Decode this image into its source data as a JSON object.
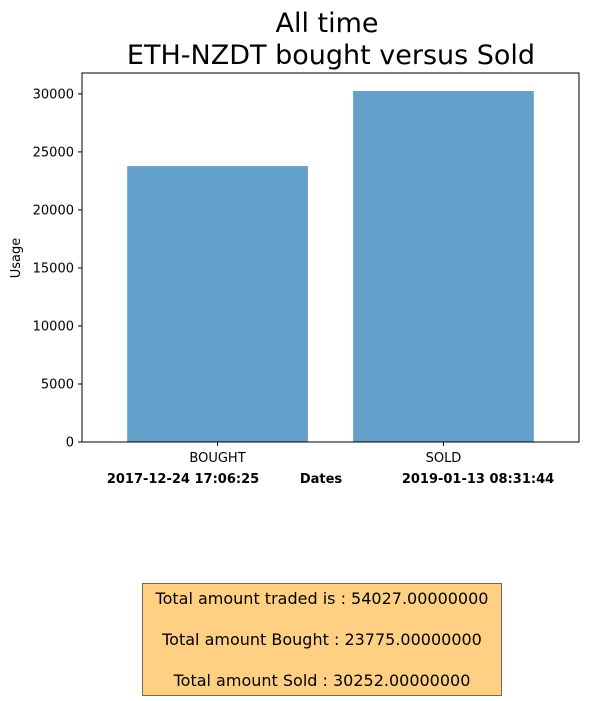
{
  "chart_data": {
    "type": "bar",
    "title": "All time\nETH-NZDT bought versus Sold",
    "categories": [
      "BOUGHT",
      "SOLD"
    ],
    "values": [
      23775,
      30252
    ],
    "ylabel": "Usage",
    "ylim": [
      0,
      31800
    ],
    "yticks": [
      0,
      5000,
      10000,
      15000,
      20000,
      25000,
      30000
    ],
    "bar_color": "#62a0ca",
    "grid": false,
    "date_labels": {
      "left": "2017-12-24 17:06:25",
      "center": "Dates",
      "right": "2019-01-13 08:31:44"
    }
  },
  "summary": {
    "box_color": "#ffd083",
    "lines": [
      "Total amount traded is : 54027.00000000",
      "Total amount Bought : 23775.00000000",
      "Total amount Sold : 30252.00000000"
    ]
  }
}
